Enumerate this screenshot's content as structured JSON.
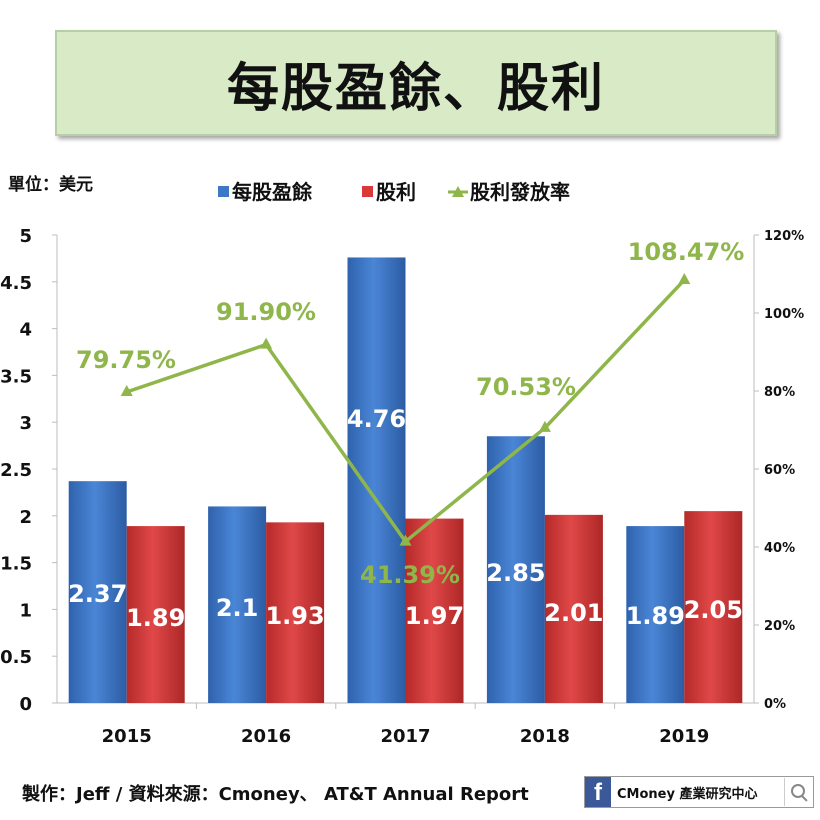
{
  "title": "每股盈餘、股利",
  "unit_label": "單位：美元",
  "footer": {
    "source": "製作：Jeff / 資料來源：Cmoney、 AT&T Annual Report",
    "brand": "CMoney 產業研究中心",
    "brand_icon": "facebook-icon"
  },
  "colors": {
    "eps": "#3c78c8",
    "dividend": "#d83a3a",
    "payout": "#8fb64a",
    "title_bg": "#d8ebc6"
  },
  "chart_data": {
    "type": "bar",
    "categories": [
      "2015",
      "2016",
      "2017",
      "2018",
      "2019"
    ],
    "series": [
      {
        "name": "每股盈餘",
        "type": "bar",
        "axis": "left",
        "values": [
          2.37,
          2.1,
          4.76,
          2.85,
          1.89
        ],
        "labels": [
          "2.37",
          "2.1",
          "4.76",
          "2.85",
          "1.89"
        ]
      },
      {
        "name": "股利",
        "type": "bar",
        "axis": "left",
        "values": [
          1.89,
          1.93,
          1.97,
          2.01,
          2.05
        ],
        "labels": [
          "1.89",
          "1.93",
          "1.97",
          "2.01",
          "2.05"
        ]
      },
      {
        "name": "股利發放率",
        "type": "line",
        "axis": "right",
        "values": [
          79.75,
          91.9,
          41.39,
          70.53,
          108.47
        ],
        "labels": [
          "79.75%",
          "91.90%",
          "41.39%",
          "70.53%",
          "108.47%"
        ]
      }
    ],
    "y_left": {
      "ylim": [
        0,
        5
      ],
      "ticks": [
        "0",
        "0.5",
        "1",
        "1.5",
        "2",
        "2.5",
        "3",
        "3.5",
        "4",
        "4.5",
        "5"
      ]
    },
    "y_right": {
      "ylim": [
        0,
        120
      ],
      "ticks": [
        "0%",
        "20%",
        "40%",
        "60%",
        "80%",
        "100%",
        "120%"
      ]
    },
    "legend_position": "top-center",
    "grid": false
  }
}
